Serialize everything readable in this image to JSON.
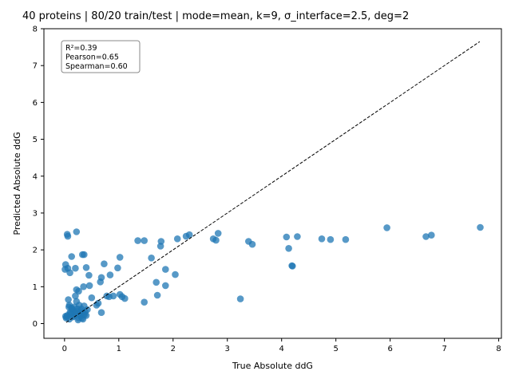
{
  "chart_data": {
    "type": "scatter",
    "title": "40 proteins | 80/20 train/test | mode=mean, k=9, σ_interface=2.5, deg=2",
    "xlabel": "True Absolute ddG",
    "ylabel": "Predicted Absolute ddG",
    "xlim": [
      -0.38,
      8.05
    ],
    "ylim": [
      -0.4,
      8.0
    ],
    "xticks": [
      "0",
      "1",
      "2",
      "3",
      "4",
      "5",
      "6",
      "7",
      "8"
    ],
    "yticks": [
      "0",
      "1",
      "2",
      "3",
      "4",
      "5",
      "6",
      "7",
      "8"
    ],
    "grid": false,
    "marker_color": "#1f77b4",
    "stats_box": [
      "R²=0.39",
      "Pearson=0.65",
      "Spearman=0.60"
    ],
    "identity_line": {
      "x": [
        0.03,
        7.65
      ],
      "y": [
        0.03,
        7.65
      ],
      "style": "dashed",
      "color": "#000000"
    },
    "points": {
      "x": [
        0.05,
        0.06,
        0.22,
        0.02,
        0.06,
        0.2,
        0.01,
        0.1,
        0.13,
        0.33,
        0.36,
        0.4,
        0.46,
        0.22,
        0.73,
        0.98,
        1.02,
        0.84,
        0.68,
        0.66,
        0.35,
        0.26,
        0.2,
        0.45,
        0.5,
        0.59,
        0.62,
        0.68,
        0.78,
        0.82,
        0.9,
        1.02,
        1.06,
        1.11,
        1.35,
        1.47,
        1.6,
        1.69,
        1.71,
        1.78,
        1.77,
        1.86,
        1.86,
        2.04,
        2.08,
        2.24,
        2.3,
        2.74,
        2.79,
        2.83,
        3.24,
        3.39,
        3.46,
        4.09,
        4.13,
        4.19,
        4.2,
        4.29,
        4.74,
        4.9,
        5.18,
        5.94,
        6.66,
        6.76,
        7.66,
        1.47,
        0.07,
        0.08,
        0.09,
        0.1,
        0.12,
        0.14,
        0.16,
        0.17,
        0.18,
        0.2,
        0.22,
        0.24,
        0.25,
        0.26,
        0.27,
        0.28,
        0.29,
        0.3,
        0.31,
        0.32,
        0.33,
        0.34,
        0.35,
        0.36,
        0.38,
        0.4,
        0.42,
        0.04,
        0.05,
        0.03,
        0.02,
        0.09,
        0.11,
        0.15,
        0.13,
        0.19,
        0.23,
        0.37
      ],
      "y": [
        2.42,
        2.37,
        2.49,
        1.6,
        1.5,
        1.5,
        1.47,
        1.38,
        1.82,
        1.87,
        1.87,
        1.52,
        1.03,
        0.92,
        1.62,
        1.51,
        1.8,
        1.32,
        1.25,
        1.13,
        1.0,
        0.88,
        0.75,
        1.31,
        0.7,
        0.5,
        0.55,
        0.3,
        0.75,
        0.73,
        0.75,
        0.79,
        0.73,
        0.68,
        2.25,
        2.25,
        1.78,
        1.12,
        0.77,
        2.23,
        2.1,
        1.47,
        1.03,
        1.33,
        2.3,
        2.37,
        2.41,
        2.3,
        2.26,
        2.45,
        0.67,
        2.23,
        2.15,
        2.35,
        2.04,
        1.57,
        1.56,
        2.36,
        2.3,
        2.28,
        2.28,
        2.6,
        2.36,
        2.4,
        2.61,
        0.58,
        0.65,
        0.45,
        0.5,
        0.3,
        0.25,
        0.4,
        0.35,
        0.2,
        0.45,
        0.3,
        0.6,
        0.4,
        0.1,
        0.15,
        0.5,
        0.25,
        0.35,
        0.2,
        0.4,
        0.15,
        0.3,
        0.12,
        0.25,
        0.48,
        0.32,
        0.22,
        0.38,
        0.18,
        0.22,
        0.15,
        0.2,
        0.12,
        0.28,
        0.18,
        0.42,
        0.26,
        0.33,
        0.24
      ]
    }
  }
}
